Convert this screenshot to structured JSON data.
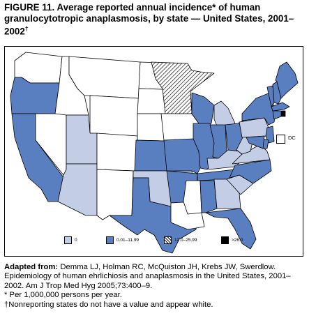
{
  "title": {
    "figure_label": "FIGURE 11.",
    "text": "Average reported annual incidence* of human granulocytotropic anaplasmosis, by state — United States, 2001–2002",
    "dagger": "†"
  },
  "map": {
    "dc_label": "DC",
    "colors": {
      "none": "#ffffff",
      "zero": "#c4cde6",
      "low": "#5a7fc0",
      "hatch": "#000000",
      "high": "#000000",
      "border": "#000000"
    },
    "legend": [
      {
        "key": "zero",
        "label": "0"
      },
      {
        "key": "low",
        "label": "0.01–11.99"
      },
      {
        "key": "hatch",
        "label": "12.0–25.99"
      },
      {
        "key": "high",
        "label": ">26.0"
      }
    ],
    "state_categories": {
      "WA": "none",
      "OR": "low",
      "CA": "low",
      "NV": "none",
      "ID": "none",
      "MT": "none",
      "WY": "none",
      "UT": "zero",
      "AZ": "zero",
      "CO": "none",
      "NM": "none",
      "ND": "none",
      "SD": "none",
      "NE": "none",
      "KS": "low",
      "OK": "zero",
      "TX": "low",
      "MN": "hatch",
      "IA": "none",
      "MO": "low",
      "AR": "low",
      "LA": "none",
      "WI": "low",
      "IL": "low",
      "MI": "zero",
      "IN": "low",
      "OH": "low",
      "KY": "zero",
      "TN": "low",
      "MS": "none",
      "AL": "low",
      "GA": "zero",
      "FL": "low",
      "SC": "zero",
      "NC": "low",
      "VA": "zero",
      "WV": "zero",
      "PA": "zero",
      "NY": "low",
      "VT": "low",
      "NH": "low",
      "ME": "low",
      "MA": "low",
      "RI": "high",
      "CT": "low",
      "NJ": "low",
      "DE": "low",
      "MD": "low"
    }
  },
  "notes": {
    "adapted_label": "Adapted from:",
    "citation": "Demma LJ, Holman RC, McQuiston JH, Krebs JW, Swerdlow. Epidemiology of human ehrlichiosis and anaplasmosis in the United States, 2001–2002. Am J Trop Med Hyg 2005;73:400–9.",
    "footnote_star": "* Per 1,000,000 persons per year.",
    "footnote_dagger": "†Nonreporting states do not have a value and appear white."
  }
}
